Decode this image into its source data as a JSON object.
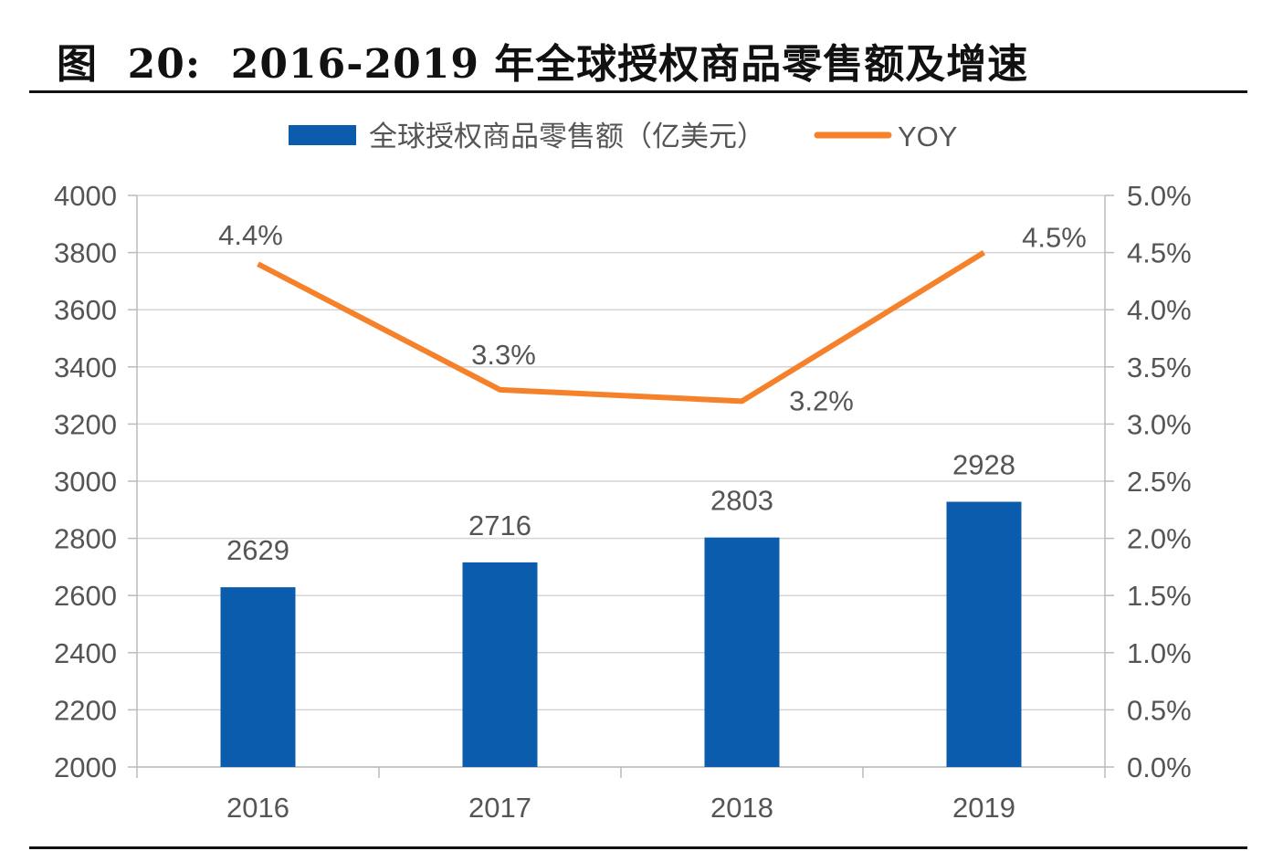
{
  "title": "图  20:  2016-2019 年全球授权商品零售额及增速",
  "chart_data": {
    "type": "bar+line",
    "categories": [
      "2016",
      "2017",
      "2018",
      "2019"
    ],
    "series": [
      {
        "name": "全球授权商品零售额（亿美元）",
        "type": "bar",
        "axis": "left",
        "values": [
          2629,
          2716,
          2803,
          2928
        ],
        "labels": [
          "2629",
          "2716",
          "2803",
          "2928"
        ],
        "color": "#0b5cad"
      },
      {
        "name": "YOY",
        "type": "line",
        "axis": "right",
        "values": [
          4.4,
          3.3,
          3.2,
          4.5
        ],
        "labels": [
          "4.4%",
          "3.3%",
          "3.2%",
          "4.5%"
        ],
        "color": "#f5822a"
      }
    ],
    "y_left": {
      "range": [
        2000,
        4000
      ],
      "ticks": [
        "2000",
        "2200",
        "2400",
        "2600",
        "2800",
        "3000",
        "3200",
        "3400",
        "3600",
        "3800",
        "4000"
      ]
    },
    "y_right": {
      "range": [
        0,
        5
      ],
      "ticks": [
        "0.0%",
        "0.5%",
        "1.0%",
        "1.5%",
        "2.0%",
        "2.5%",
        "3.0%",
        "3.5%",
        "4.0%",
        "4.5%",
        "5.0%"
      ]
    },
    "grid": true,
    "legend": "top"
  }
}
